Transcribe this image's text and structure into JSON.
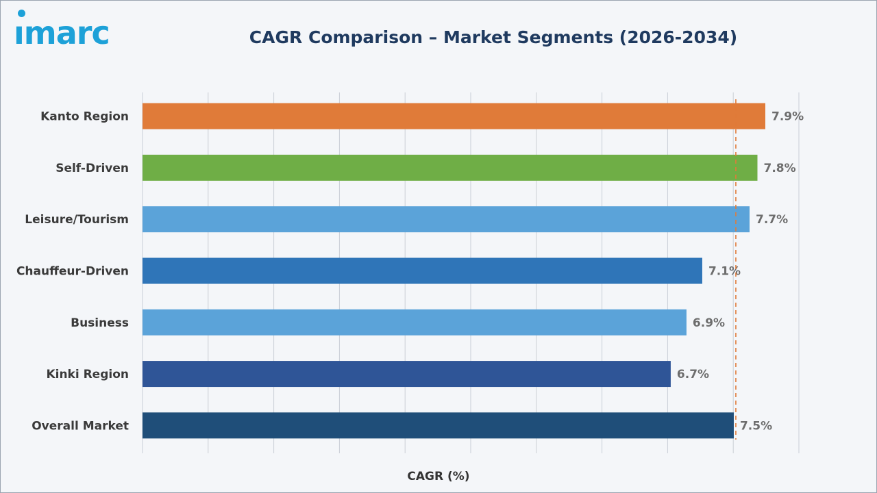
{
  "logo": {
    "text": "imarc",
    "color": "#1da1d8"
  },
  "chart_data": {
    "type": "bar",
    "orientation": "horizontal",
    "title": "CAGR Comparison – Market Segments (2026-2034)",
    "xlabel": "CAGR (%)",
    "ylabel": "",
    "categories": [
      "Kanto Region",
      "Self-Driven",
      "Leisure/Tourism",
      "Chauffeur-Driven",
      "Business",
      "Kinki Region",
      "Overall Market"
    ],
    "values": [
      7.9,
      7.8,
      7.7,
      7.1,
      6.9,
      6.7,
      7.5
    ],
    "value_labels": [
      "7.9%",
      "7.8%",
      "7.7%",
      "7.1%",
      "6.9%",
      "6.7%",
      "7.5%"
    ],
    "colors": [
      "#e07b39",
      "#6fae46",
      "#5ba3d9",
      "#2f75b8",
      "#5ba3d9",
      "#2f5597",
      "#1f4e79"
    ],
    "xlim": [
      6.0,
      8.0
    ],
    "grid": "vertical",
    "reference_line": {
      "value": 7.5,
      "style": "dashed",
      "color": "#e07b39"
    },
    "title_color": "#1f3a5f"
  }
}
